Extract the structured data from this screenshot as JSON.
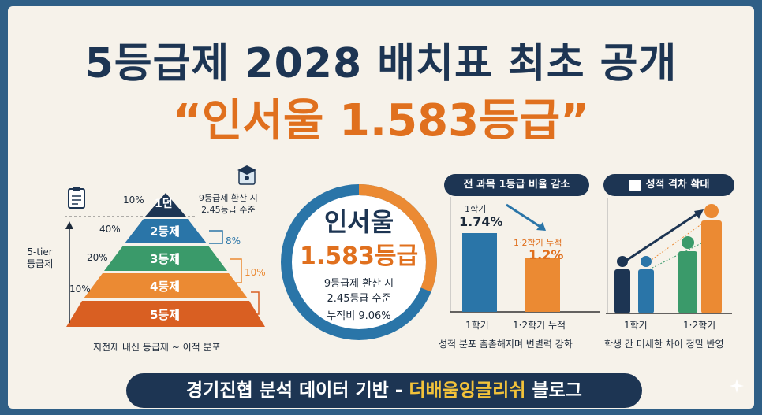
{
  "header": {
    "title": "5등급제 2028 배치표 최초 공개",
    "subtitle": "“인서울 1.583등급”"
  },
  "pyramid": {
    "side_label": "5-tier\n등급제",
    "tiers": [
      {
        "label": "1던",
        "percent": "10%",
        "color": "#1d3553"
      },
      {
        "label": "2등제",
        "percent": "40%",
        "color": "#2a75a8"
      },
      {
        "label": "3등제",
        "percent": "20%",
        "color": "#3a9a6a"
      },
      {
        "label": "4등제",
        "percent": "10%",
        "color": "#eb8a33"
      },
      {
        "label": "5등제",
        "percent": "",
        "color": "#d95f22"
      }
    ],
    "right_markers": [
      "8%",
      "10%"
    ],
    "top_note": "9등급제 환산 시\n2.45등급 수준",
    "caption": "지전제 내신 등급제 ~ 이적 분포"
  },
  "center": {
    "line1": "인서울",
    "line2": "1.583등급",
    "detail1": "9등급제 환산 시",
    "detail2": "2.45등급 수준",
    "detail3": "누적비 9.06%"
  },
  "bar_panel": {
    "title": "전 과목 1등급 비율 감소",
    "bars": [
      {
        "top_label": "1학기",
        "value_label": "1.74%",
        "value": 1.74,
        "x_label": "1학기"
      },
      {
        "top_label": "1·2학기 누적",
        "value_label": "1.2%",
        "value": 1.2,
        "x_label": "1·2학기 누적"
      }
    ],
    "caption": "성적 분포 촘촘해지며 변별력 강화"
  },
  "gap_panel": {
    "title": "성적 격차 확대",
    "x_labels": [
      "1학기",
      "1·2학기"
    ],
    "caption": "학생 간 미세한 차이 정밀 반영"
  },
  "footer": {
    "text_main": "경기진협 분석 데이터 기반 - ",
    "text_highlight": "더배움잉글리쉬",
    "text_end": " 블로그"
  },
  "colors": {
    "navy": "#1d3553",
    "orange": "#e0701e",
    "blue": "#2a75a8",
    "green": "#3a9a6a"
  }
}
